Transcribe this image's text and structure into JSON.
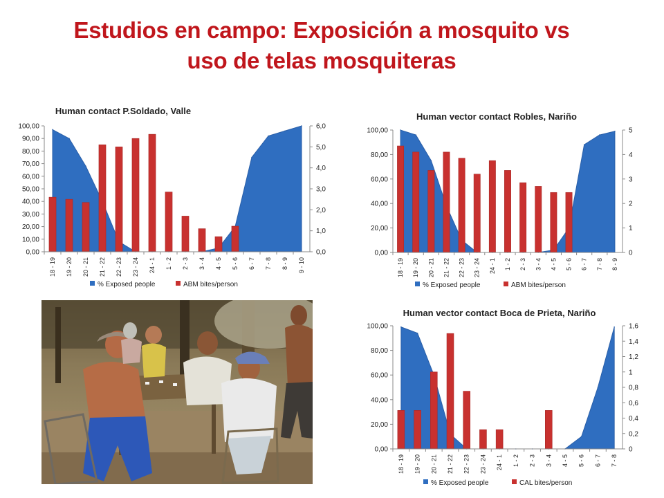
{
  "slide": {
    "title_line1": "Estudios en campo: Exposición a mosquito vs",
    "title_line2": "uso de telas mosquiteras"
  },
  "colors": {
    "title": "#c0161c",
    "area_series": "#2f6ec0",
    "bar_series": "#c8312f"
  },
  "photo": {
    "description_name": "villagers-playing-dominoes-photo"
  },
  "chart_data": [
    {
      "type": "bar",
      "title": "Human contact P.Soldado, Valle",
      "categories": [
        "18 - 19",
        "19 - 20",
        "20 - 21",
        "21 - 22",
        "22 - 23",
        "23 - 24",
        "24 - 1",
        "1 - 2",
        "2 - 3",
        "3 - 4",
        "4 - 5",
        "5 - 6",
        "6 - 7",
        "7 - 8",
        "8 - 9",
        "9 - 10"
      ],
      "y_ticks": [
        "0,00",
        "10,00",
        "20,00",
        "30,00",
        "40,00",
        "50,00",
        "60,00",
        "70,00",
        "80,00",
        "90,00",
        "100,00"
      ],
      "y2_ticks": [
        "0,0",
        "1,0",
        "2,0",
        "3,0",
        "4,0",
        "5,0",
        "6,0"
      ],
      "ylim": [
        0,
        100
      ],
      "y2lim": [
        0,
        6
      ],
      "grid": false,
      "legend_position": "bottom",
      "series": [
        {
          "name": "% Exposed people",
          "kind": "area",
          "axis": "left",
          "values": [
            97,
            90,
            68,
            40,
            8,
            0,
            0,
            0,
            0,
            0,
            3,
            20,
            75,
            92,
            96,
            100
          ]
        },
        {
          "name": "ABM bites/person",
          "kind": "bar",
          "axis": "right",
          "values": [
            2.6,
            2.5,
            2.35,
            5.1,
            5.0,
            5.4,
            5.6,
            2.85,
            1.7,
            1.1,
            0.72,
            1.22,
            null,
            null,
            null,
            null
          ]
        }
      ]
    },
    {
      "type": "bar",
      "title": "Human vector contact Robles, Nariño",
      "categories": [
        "18 - 19",
        "19 - 20",
        "20 - 21",
        "21 - 22",
        "22 - 23",
        "23 - 24",
        "24 - 1",
        "1 - 2",
        "2 - 3",
        "3 - 4",
        "4 - 5",
        "5 - 6",
        "6 - 7",
        "7 - 8",
        "8 - 9"
      ],
      "y_ticks": [
        "0,00",
        "20,00",
        "40,00",
        "60,00",
        "80,00",
        "100,00"
      ],
      "y2_ticks": [
        "0",
        "1",
        "2",
        "3",
        "4",
        "5"
      ],
      "ylim": [
        0,
        100
      ],
      "y2lim": [
        0,
        5
      ],
      "grid": false,
      "legend_position": "bottom",
      "series": [
        {
          "name": "% Exposed people",
          "kind": "area",
          "axis": "left",
          "values": [
            100,
            96,
            75,
            38,
            10,
            0,
            0,
            0,
            0,
            0,
            2,
            20,
            88,
            96,
            99
          ]
        },
        {
          "name": "ABM bites/person",
          "kind": "bar",
          "axis": "right",
          "values": [
            4.35,
            4.1,
            3.35,
            4.1,
            3.85,
            3.2,
            3.75,
            3.35,
            2.85,
            2.7,
            2.45,
            2.45,
            null,
            null,
            null
          ]
        }
      ]
    },
    {
      "type": "bar",
      "title": "Human vector contact Boca de Prieta, Nariño",
      "categories": [
        "18 - 19",
        "19 - 20",
        "20 - 21",
        "21 - 22",
        "22 - 23",
        "23 - 24",
        "24 - 1",
        "1 - 2",
        "2 - 3",
        "3 - 4",
        "4 - 5",
        "5 - 6",
        "6 - 7",
        "7 - 8"
      ],
      "y_ticks": [
        "0,00",
        "20,00",
        "40,00",
        "60,00",
        "80,00",
        "100,00"
      ],
      "y2_ticks": [
        "0",
        "0,2",
        "0,4",
        "0,6",
        "0,8",
        "1",
        "1,2",
        "1,4",
        "1,6"
      ],
      "ylim": [
        0,
        100
      ],
      "y2lim": [
        0,
        1.6
      ],
      "grid": false,
      "legend_position": "bottom",
      "series": [
        {
          "name": "% Exposed people",
          "kind": "area",
          "axis": "left",
          "values": [
            99,
            94,
            60,
            12,
            0,
            0,
            0,
            0,
            0,
            0,
            0,
            10,
            50,
            99
          ]
        },
        {
          "name": "CAL bites/person",
          "kind": "bar",
          "axis": "right",
          "values": [
            0.5,
            0.5,
            1.0,
            1.5,
            0.75,
            0.25,
            0.25,
            null,
            null,
            0.5,
            null,
            null,
            null,
            null
          ]
        }
      ]
    }
  ]
}
